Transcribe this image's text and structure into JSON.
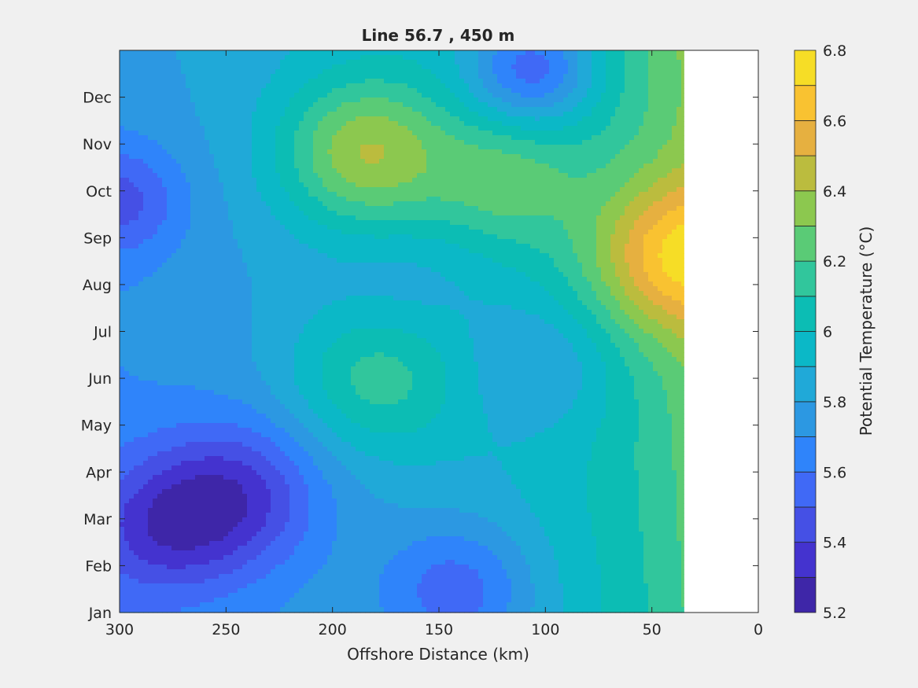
{
  "chart_data": {
    "type": "heatmap",
    "title": "Line 56.7 , 450 m",
    "xlabel": "Offshore Distance (km)",
    "ylabel": "",
    "colorbar_label": "Potential Temperature (°C)",
    "x_reversed": true,
    "xlim": [
      0,
      300
    ],
    "x_ticks": [
      300,
      250,
      200,
      150,
      100,
      50,
      0
    ],
    "y_ticks": [
      "Jan",
      "Feb",
      "Mar",
      "Apr",
      "May",
      "Jun",
      "Jul",
      "Aug",
      "Sep",
      "Oct",
      "Nov",
      "Dec"
    ],
    "clim": [
      5.2,
      6.8
    ],
    "colorbar_ticks": [
      5.2,
      5.4,
      5.6,
      5.8,
      6,
      6.2,
      6.4,
      6.6,
      6.8
    ],
    "contour_levels": [
      5.2,
      5.3,
      5.4,
      5.5,
      5.6,
      5.7,
      5.8,
      5.9,
      6.0,
      6.1,
      6.2,
      6.3,
      6.4,
      6.5,
      6.6,
      6.7,
      6.8
    ],
    "level_colors": [
      "#3e26a8",
      "#4433cf",
      "#4550e5",
      "#4069f6",
      "#2f84fa",
      "#2c98e2",
      "#20a9d8",
      "#0bb8c7",
      "#0cbdb4",
      "#31c69c",
      "#5acb76",
      "#8cc84f",
      "#bbbc3e",
      "#e6b040",
      "#f9c231",
      "#f6dd26"
    ],
    "no_data_xrange": [
      0,
      35
    ],
    "grid": false,
    "features": [
      {
        "x": 300,
        "month": 8.8,
        "value": 5.45,
        "spread": 30
      },
      {
        "x": 245,
        "month": 2.5,
        "value": 5.35,
        "spread": 40
      },
      {
        "x": 280,
        "month": 1.8,
        "value": 5.4,
        "spread": 35
      },
      {
        "x": 140,
        "month": 0.5,
        "value": 5.55,
        "spread": 35
      },
      {
        "x": 105,
        "month": 11.6,
        "value": 5.55,
        "spread": 30
      },
      {
        "x": 185,
        "month": 9.8,
        "value": 6.4,
        "spread": 40
      },
      {
        "x": 120,
        "month": 9.2,
        "value": 6.25,
        "spread": 35
      },
      {
        "x": 40,
        "month": 7.6,
        "value": 6.75,
        "spread": 40
      },
      {
        "x": 180,
        "month": 5.0,
        "value": 6.15,
        "spread": 40
      },
      {
        "x": 100,
        "month": 5.3,
        "value": 5.8,
        "spread": 35
      },
      {
        "x": 165,
        "month": 6.9,
        "value": 5.8,
        "spread": 35
      }
    ]
  }
}
